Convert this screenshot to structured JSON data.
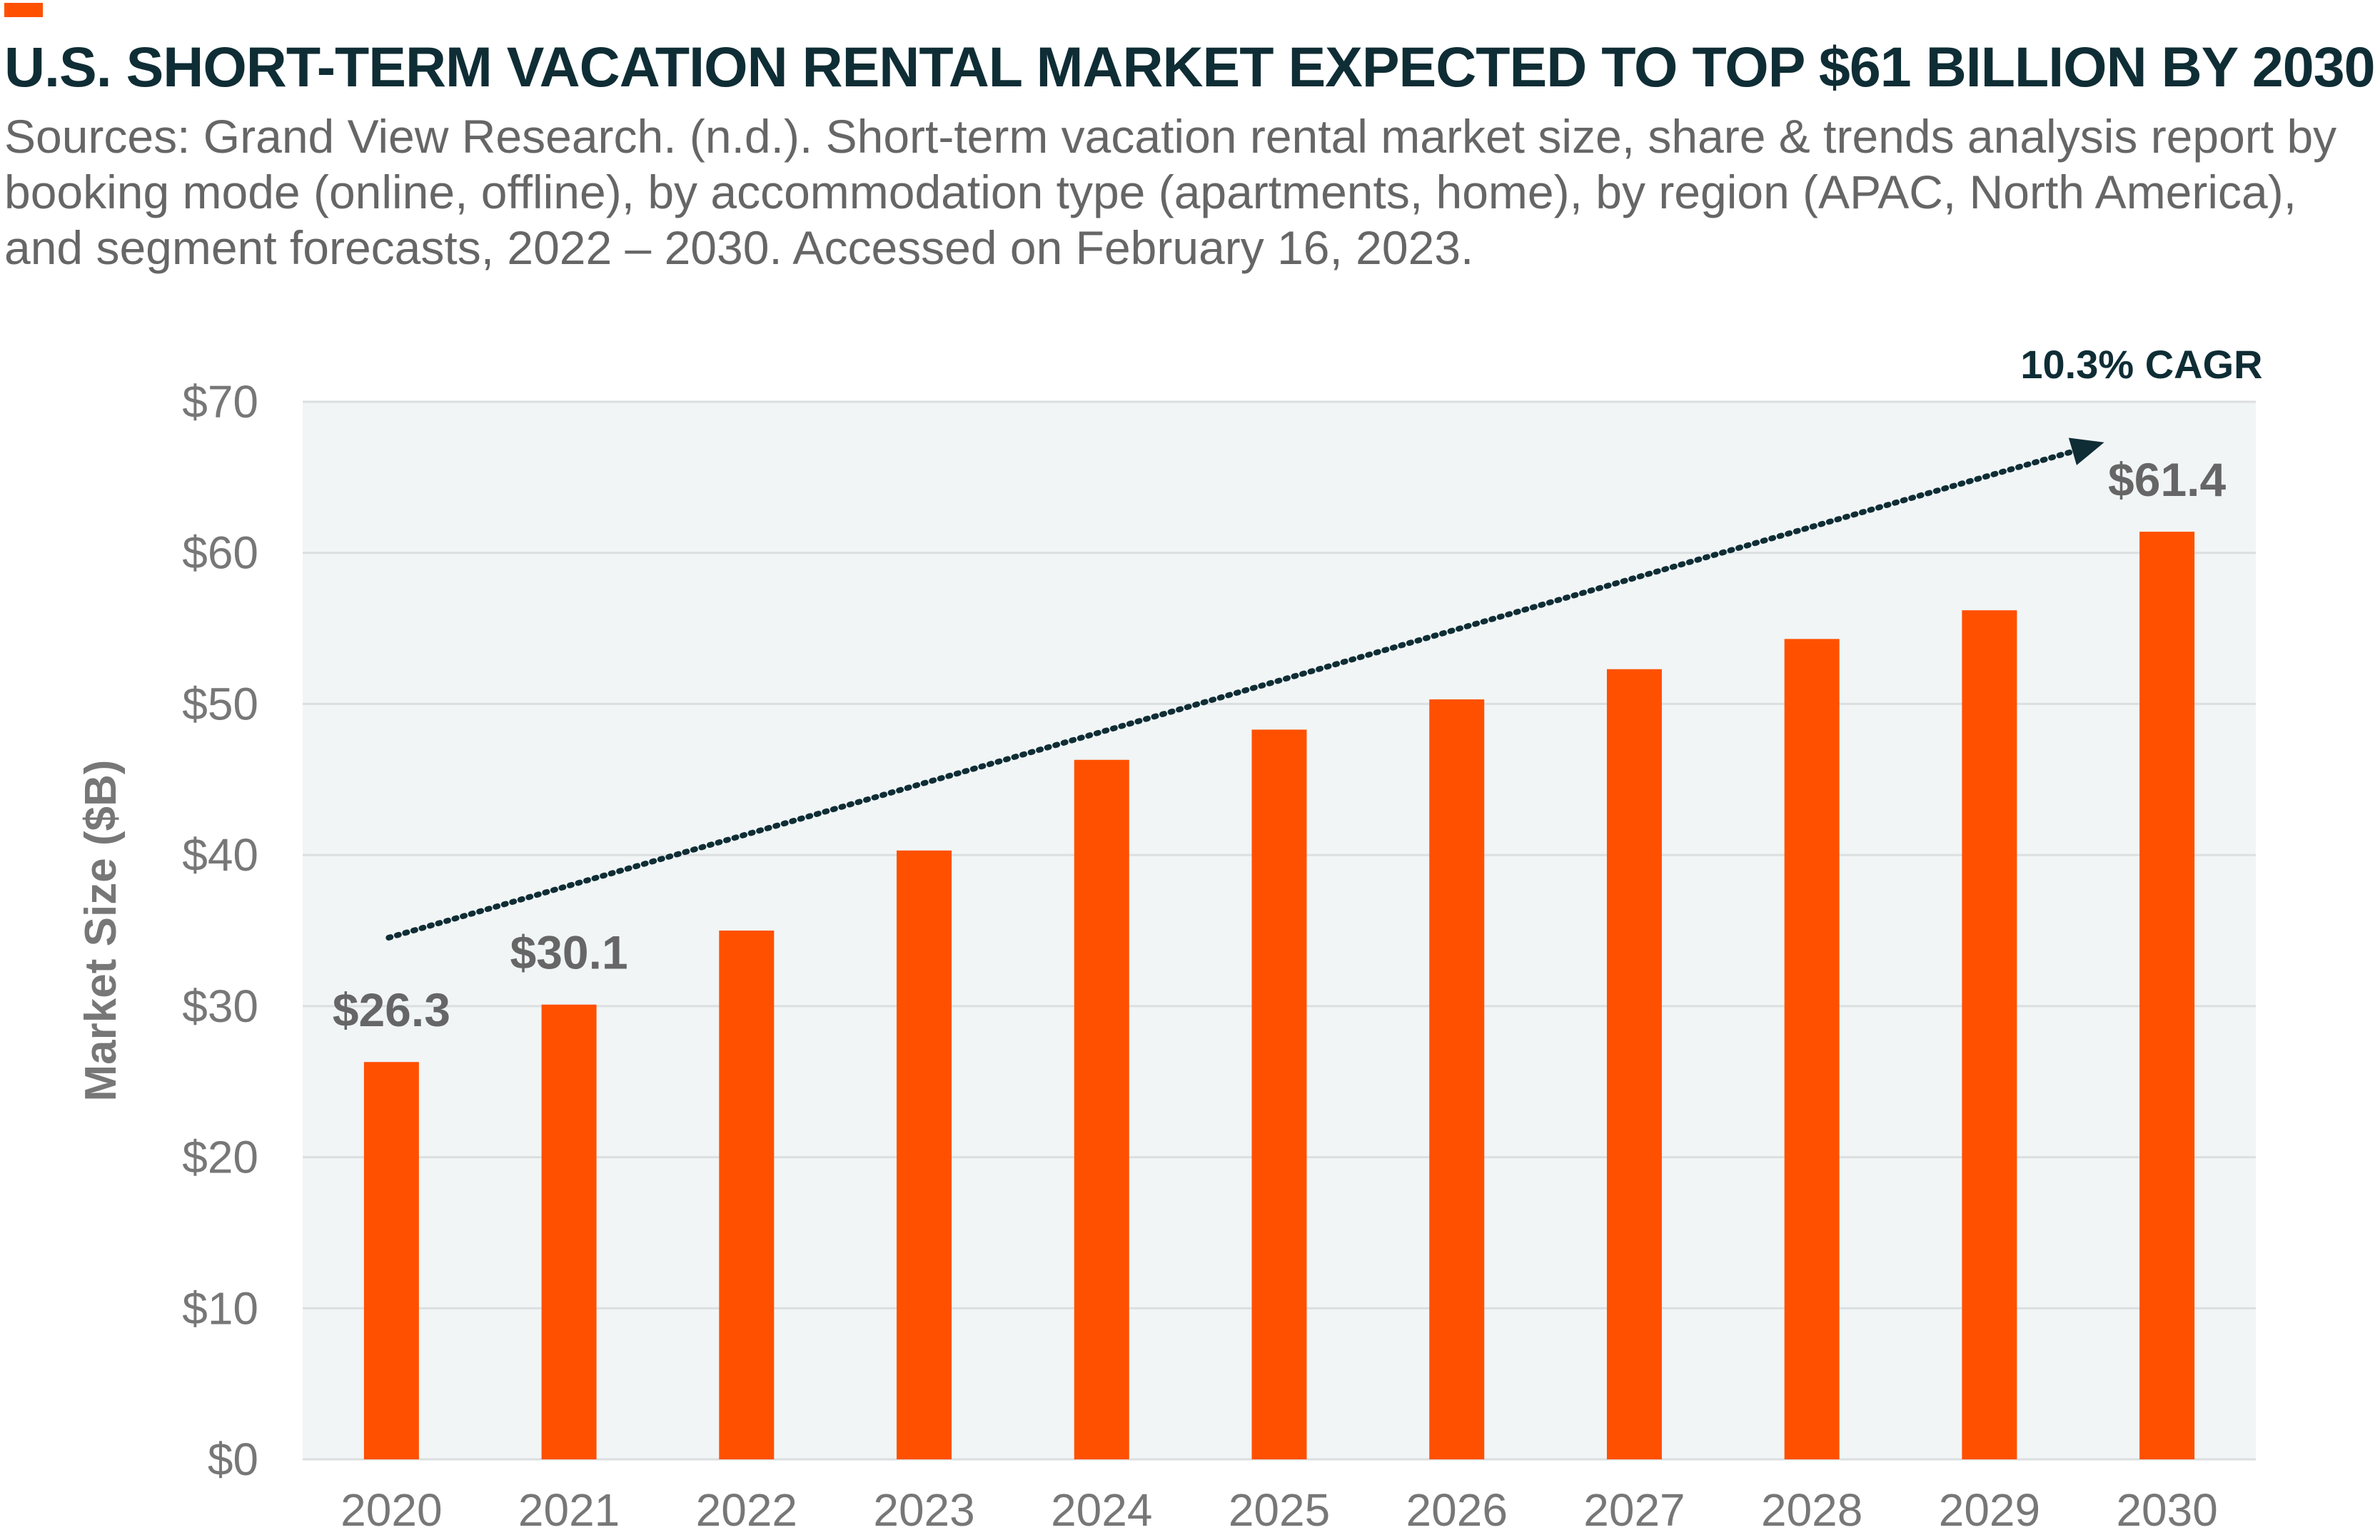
{
  "header": {
    "title": "U.S. SHORT-TERM VACATION RENTAL MARKET EXPECTED TO TOP $61 BILLION BY 2030",
    "subtitle": "Sources: Grand View Research. (n.d.). Short-term vacation rental market size, share & trends analysis report by booking mode (online, offline), by accommodation type (apartments, home), by region (APAC, North America), and segment forecasts, 2022 – 2030. Accessed on February 16, 2023."
  },
  "colors": {
    "accent": "#ff5000",
    "title": "#0f2d35",
    "plot_background": "#f1f5f6",
    "gridline": "#dcdfe0",
    "bar": "#ff5000",
    "trend_arrow": "#0f2d35"
  },
  "chart_data": {
    "type": "bar",
    "categories": [
      "2020",
      "2021",
      "2022",
      "2023",
      "2024",
      "2025",
      "2026",
      "2027",
      "2028",
      "2029",
      "2030"
    ],
    "values": [
      26.3,
      30.1,
      35,
      40.3,
      46.3,
      48.3,
      50.3,
      52.3,
      54.3,
      56.2,
      61.4
    ],
    "data_labels": [
      {
        "index": 0,
        "text": "$26.3"
      },
      {
        "index": 1,
        "text": "$30.1"
      },
      {
        "index": 10,
        "text": "$61.4"
      }
    ],
    "ylabel": "Market Size ($B)",
    "xlabel": "",
    "ylim": [
      0,
      70
    ],
    "yticks": [
      0,
      10,
      20,
      30,
      40,
      50,
      60,
      70
    ],
    "ytick_labels": [
      "$0",
      "$10",
      "$20",
      "$30",
      "$40",
      "$50",
      "$60",
      "$70"
    ],
    "grid": true,
    "annotation": {
      "text": "10.3% CAGR",
      "style": "dotted arrow",
      "from": {
        "x": "2020",
        "y": 35
      },
      "to": {
        "x": "2030",
        "y": 67.5
      }
    }
  }
}
